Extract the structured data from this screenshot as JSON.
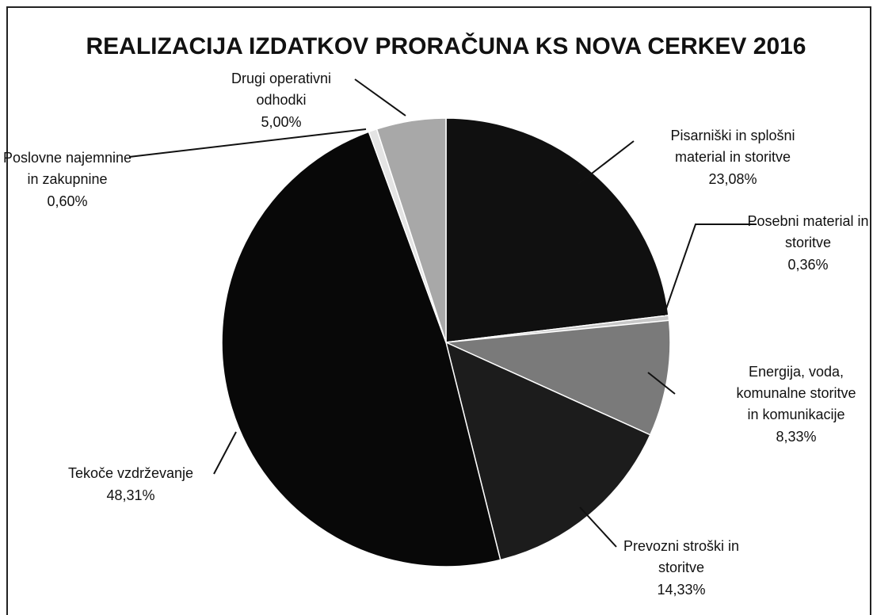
{
  "chart_data": {
    "type": "pie",
    "title": "REALIZACIJA IZDATKOV PRORAČUNA KS NOVA CERKEV 2016",
    "categories": [
      [
        "Pisarniški in splošni",
        "material in storitve"
      ],
      [
        "Posebni material in",
        "storitve"
      ],
      [
        "Energija, voda,",
        "komunalne storitve",
        "in komunikacije"
      ],
      [
        "Prevozni stroški in",
        "storitve"
      ],
      [
        "Tekoče vzdrževanje"
      ],
      [
        "Poslovne najemnine",
        "in zakupnine"
      ],
      [
        "Drugi operativni",
        "odhodki"
      ]
    ],
    "values": [
      23.08,
      0.36,
      8.33,
      14.33,
      48.31,
      0.6,
      5.0
    ],
    "value_labels": [
      "23,08%",
      "0,36%",
      "8,33%",
      "14,33%",
      "48,31%",
      "0,60%",
      "5,00%"
    ],
    "colors": [
      "#101010",
      "#c8c8c8",
      "#7a7a7a",
      "#1c1c1c",
      "#080808",
      "#e4e4e4",
      "#a8a8a8"
    ]
  }
}
